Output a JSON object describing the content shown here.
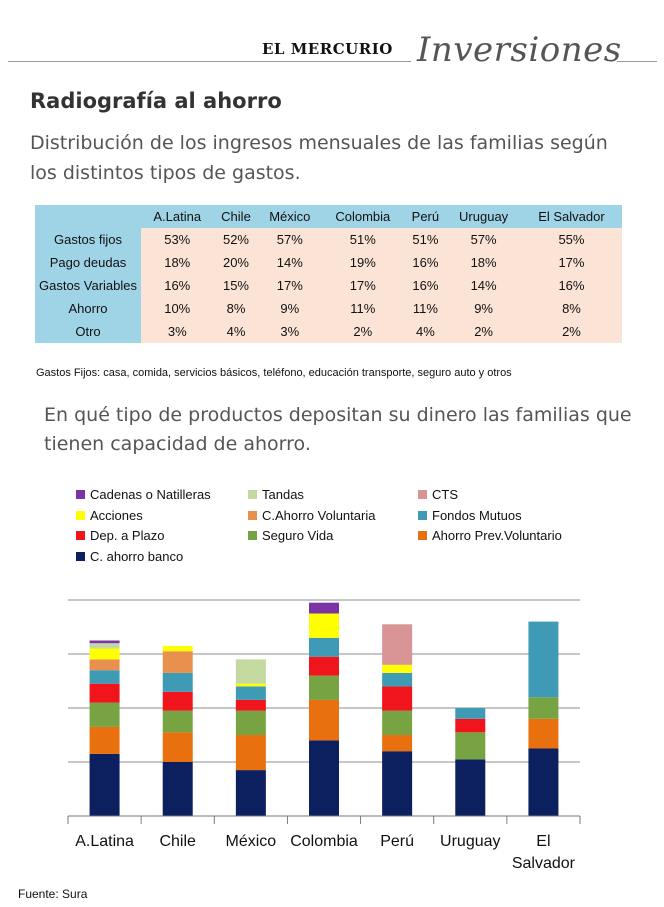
{
  "header": {
    "brand": "EL MERCURIO",
    "section": "Inversiones"
  },
  "title": "Radiografía al ahorro",
  "subtitle": "Distribución de los ingresos mensuales de las familias según los distintos tipos de gastos.",
  "table": {
    "columns": [
      "A.Latina",
      "Chile",
      "México",
      "Colombia",
      "Perú",
      "Uruguay",
      "El Salvador"
    ],
    "rows": [
      {
        "label": "Gastos fijos",
        "values": [
          "53%",
          "52%",
          "57%",
          "51%",
          "51%",
          "57%",
          "55%"
        ]
      },
      {
        "label": "Pago deudas",
        "values": [
          "18%",
          "20%",
          "14%",
          "19%",
          "16%",
          "18%",
          "17%"
        ]
      },
      {
        "label": "Gastos Variables",
        "values": [
          "16%",
          "15%",
          "17%",
          "17%",
          "16%",
          "14%",
          "16%"
        ]
      },
      {
        "label": "Ahorro",
        "values": [
          "10%",
          "8%",
          "9%",
          "11%",
          "11%",
          "9%",
          "8%"
        ]
      },
      {
        "label": "Otro",
        "values": [
          "3%",
          "4%",
          "3%",
          "2%",
          "4%",
          "2%",
          "2%"
        ]
      }
    ]
  },
  "footnote": "Gastos Fijos: casa, comida, servicios básicos, teléfono, educación transporte, seguro auto y otros",
  "question": "En qué tipo de productos depositan su dinero las familias que tienen capacidad de ahorro.",
  "source": "Fuente: Sura",
  "chart_data": {
    "type": "bar",
    "stacked": true,
    "categories": [
      "A.Latina",
      "Chile",
      "México",
      "Colombia",
      "Perú",
      "Uruguay",
      "El Salvador"
    ],
    "ylim": [
      0,
      80
    ],
    "grid": true,
    "legend": "top",
    "series": [
      {
        "name": "C. ahorro banco",
        "color": "#0c1f5e",
        "values": [
          23,
          20,
          17,
          28,
          24,
          21,
          25
        ]
      },
      {
        "name": "Ahorro Prev.Voluntario",
        "color": "#e8700f",
        "values": [
          10,
          11,
          13,
          15,
          6,
          0,
          11
        ]
      },
      {
        "name": "Seguro Vida",
        "color": "#77a342",
        "values": [
          9,
          8,
          9,
          9,
          9,
          10,
          8
        ]
      },
      {
        "name": "Dep. a Plazo",
        "color": "#f0141c",
        "values": [
          7,
          7,
          4,
          7,
          9,
          5,
          0
        ]
      },
      {
        "name": "Fondos Mutuos",
        "color": "#3f9bb5",
        "values": [
          5,
          7,
          5,
          7,
          5,
          4,
          28
        ]
      },
      {
        "name": "C.Ahorro Voluntaria",
        "color": "#e8904d",
        "values": [
          4,
          8,
          0,
          0,
          0,
          0,
          0
        ]
      },
      {
        "name": "Acciones",
        "color": "#ffff00",
        "values": [
          4,
          2,
          1,
          9,
          3,
          0,
          0
        ]
      },
      {
        "name": "CTS",
        "color": "#d99595",
        "values": [
          0,
          0,
          0,
          0,
          15,
          0,
          0
        ]
      },
      {
        "name": "Tandas",
        "color": "#c4d9a0",
        "values": [
          2,
          0,
          9,
          0,
          0,
          0,
          0
        ]
      },
      {
        "name": "Cadenas o Natilleras",
        "color": "#7b34a3",
        "values": [
          1,
          0,
          0,
          4,
          0,
          0,
          0
        ]
      }
    ]
  }
}
